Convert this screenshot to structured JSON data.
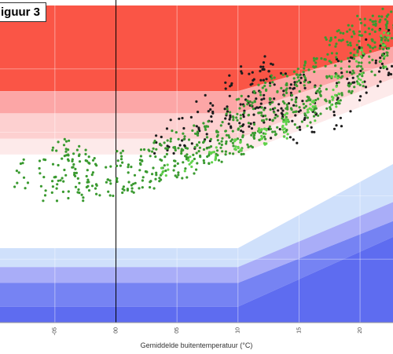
{
  "figure_label": "iguur 3",
  "chart_data": {
    "type": "scatter",
    "xlabel": "Gemiddelde buitentemperatuur (°C)",
    "ylabel": "",
    "x_ticks": [
      {
        "value": -5,
        "label": "-05"
      },
      {
        "value": 0,
        "label": "00"
      },
      {
        "value": 5,
        "label": "05"
      },
      {
        "value": 10,
        "label": "10"
      },
      {
        "value": 15,
        "label": "15"
      },
      {
        "value": 20,
        "label": "20"
      }
    ],
    "xlim": [
      -9.5,
      22.7
    ],
    "ylim": [
      0,
      100
    ],
    "zero_line_x": 0,
    "grid": true,
    "comfort_bands": {
      "x_knee": 10,
      "x_end": 22.7,
      "levels_left": [
        100,
        73,
        66,
        58,
        53,
        23.5,
        17.5,
        12.5,
        5,
        0
      ],
      "levels_right": [
        100,
        87,
        82,
        77,
        72,
        50,
        38,
        32,
        27,
        0
      ],
      "colors": [
        "#fa5546",
        "#fca6a6",
        "#fdd0d0",
        "#fdeaea",
        "#ffffff",
        "#cfe0fb",
        "#a9adf8",
        "#7683f3",
        "#5e6cf0"
      ]
    },
    "series": [
      {
        "color": "#1d1d1d",
        "clusters": [
          {
            "x": 9.2,
            "y": [
              58,
              78
            ],
            "n": 18
          },
          {
            "x": 10.3,
            "y": [
              60,
              82
            ],
            "n": 14
          },
          {
            "x": 11.2,
            "y": [
              56,
              80
            ],
            "n": 22
          },
          {
            "x": 12.0,
            "y": [
              60,
              84
            ],
            "n": 22
          },
          {
            "x": 12.8,
            "y": [
              58,
              82
            ],
            "n": 18
          },
          {
            "x": 13.6,
            "y": [
              58,
              80
            ],
            "n": 14
          },
          {
            "x": 14.5,
            "y": [
              56,
              76
            ],
            "n": 16
          },
          {
            "x": 15.3,
            "y": [
              60,
              80
            ],
            "n": 14
          },
          {
            "x": 16.2,
            "y": [
              58,
              76
            ],
            "n": 12
          },
          {
            "x": 7.6,
            "y": [
              55,
              72
            ],
            "n": 14
          },
          {
            "x": 6.5,
            "y": [
              54,
              70
            ],
            "n": 10
          },
          {
            "x": 5.5,
            "y": [
              55,
              66
            ],
            "n": 8
          },
          {
            "x": 4.5,
            "y": [
              52,
              65
            ],
            "n": 6
          },
          {
            "x": 3.5,
            "y": [
              52,
              62
            ],
            "n": 5
          },
          {
            "x": 18.2,
            "y": [
              60,
              84
            ],
            "n": 14
          },
          {
            "x": 19.2,
            "y": [
              66,
              86
            ],
            "n": 12
          },
          {
            "x": 20.2,
            "y": [
              70,
              90
            ],
            "n": 10
          },
          {
            "x": 21.5,
            "y": [
              74,
              94
            ],
            "n": 12
          },
          {
            "x": 22.3,
            "y": [
              78,
              96
            ],
            "n": 10
          }
        ]
      },
      {
        "color": "#3a9a30",
        "clusters": [
          {
            "x": -8.0,
            "y": [
              42,
              48
            ],
            "n": 4
          },
          {
            "x": -7.5,
            "y": [
              40,
              53
            ],
            "n": 6
          },
          {
            "x": -6.0,
            "y": [
              38,
              54
            ],
            "n": 10
          },
          {
            "x": -5.0,
            "y": [
              38,
              57
            ],
            "n": 16
          },
          {
            "x": -4.2,
            "y": [
              39,
              58
            ],
            "n": 22
          },
          {
            "x": -3.3,
            "y": [
              40,
              57
            ],
            "n": 22
          },
          {
            "x": -2.5,
            "y": [
              38,
              55
            ],
            "n": 18
          },
          {
            "x": -1.6,
            "y": [
              40,
              54
            ],
            "n": 12
          },
          {
            "x": -0.5,
            "y": [
              38,
              50
            ],
            "n": 10
          },
          {
            "x": 0.4,
            "y": [
              40,
              56
            ],
            "n": 16
          },
          {
            "x": 1.3,
            "y": [
              41,
              52
            ],
            "n": 14
          },
          {
            "x": 2.2,
            "y": [
              42,
              56
            ],
            "n": 16
          },
          {
            "x": 3.0,
            "y": [
              42,
              58
            ],
            "n": 18
          },
          {
            "x": 3.9,
            "y": [
              44,
              58
            ],
            "n": 18
          },
          {
            "x": 4.8,
            "y": [
              45,
              61
            ],
            "n": 20
          },
          {
            "x": 5.7,
            "y": [
              45,
              60
            ],
            "n": 20
          },
          {
            "x": 6.6,
            "y": [
              47,
              63
            ],
            "n": 20
          },
          {
            "x": 7.5,
            "y": [
              49,
              64
            ],
            "n": 22
          },
          {
            "x": 8.4,
            "y": [
              50,
              64
            ],
            "n": 20
          },
          {
            "x": 9.3,
            "y": [
              52,
              68
            ],
            "n": 22
          },
          {
            "x": 10.2,
            "y": [
              53,
              72
            ],
            "n": 24
          },
          {
            "x": 11.1,
            "y": [
              55,
              74
            ],
            "n": 26
          },
          {
            "x": 12.0,
            "y": [
              57,
              76
            ],
            "n": 26
          },
          {
            "x": 12.9,
            "y": [
              58,
              78
            ],
            "n": 26
          },
          {
            "x": 13.8,
            "y": [
              60,
              80
            ],
            "n": 26
          },
          {
            "x": 14.7,
            "y": [
              61,
              82
            ],
            "n": 26
          },
          {
            "x": 15.6,
            "y": [
              63,
              84
            ],
            "n": 26
          },
          {
            "x": 16.5,
            "y": [
              65,
              86
            ],
            "n": 28
          },
          {
            "x": 17.4,
            "y": [
              67,
              90
            ],
            "n": 28
          },
          {
            "x": 18.3,
            "y": [
              69,
              93
            ],
            "n": 30
          },
          {
            "x": 19.2,
            "y": [
              72,
              95
            ],
            "n": 30
          },
          {
            "x": 20.1,
            "y": [
              74,
              97
            ],
            "n": 30
          },
          {
            "x": 21.0,
            "y": [
              77,
              98
            ],
            "n": 28
          },
          {
            "x": 21.9,
            "y": [
              80,
              99
            ],
            "n": 26
          },
          {
            "x": 22.5,
            "y": [
              82,
              99
            ],
            "n": 18
          }
        ]
      },
      {
        "color": "#5fd24a",
        "clusters": [
          {
            "x": 4.0,
            "y": [
              44,
              50
            ],
            "n": 6
          },
          {
            "x": 6.0,
            "y": [
              47,
              53
            ],
            "n": 8
          },
          {
            "x": 8.0,
            "y": [
              50,
              56
            ],
            "n": 10
          },
          {
            "x": 10.0,
            "y": [
              54,
              60
            ],
            "n": 14
          },
          {
            "x": 12.0,
            "y": [
              56,
              62
            ],
            "n": 16
          },
          {
            "x": 14.0,
            "y": [
              58,
              66
            ],
            "n": 18
          },
          {
            "x": 16.0,
            "y": [
              62,
              70
            ],
            "n": 16
          },
          {
            "x": 18.0,
            "y": [
              68,
              78
            ],
            "n": 14
          },
          {
            "x": 20.0,
            "y": [
              74,
              86
            ],
            "n": 12
          },
          {
            "x": 22.0,
            "y": [
              80,
              92
            ],
            "n": 10
          }
        ]
      }
    ]
  }
}
